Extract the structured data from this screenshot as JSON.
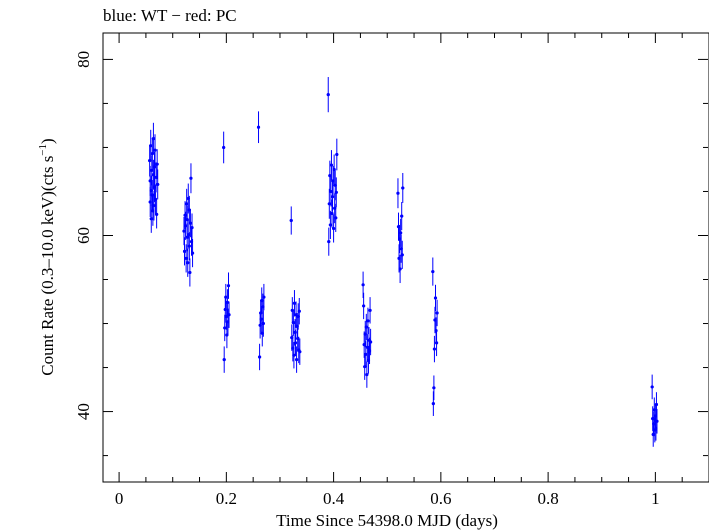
{
  "chart_data": {
    "type": "scatter",
    "title": "blue: WT − red: PC",
    "xlabel": "Time Since 54398.0 MJD (days)",
    "ylabel_main": "Count Rate (0.3–10.0 keV)(cts s",
    "ylabel_sup": "−1",
    "ylabel_end": ")",
    "xlim": [
      -0.03,
      1.1
    ],
    "ylim": [
      32,
      83
    ],
    "x_ticks": [
      0,
      0.2,
      0.4,
      0.6,
      0.8,
      1
    ],
    "x_tick_labels": [
      "0",
      "0.2",
      "0.4",
      "0.6",
      "0.8",
      "1"
    ],
    "y_ticks": [
      40,
      60,
      80
    ],
    "y_tick_labels": [
      "40",
      "60",
      "80"
    ],
    "grid": false,
    "colors": {
      "WT": "#0000ff",
      "PC": "#ff0000",
      "axes": "#000000"
    },
    "series": [
      {
        "mode": "WT",
        "color": "#0000ff",
        "points": [
          [
            0.057,
            68.5,
            1.8
          ],
          [
            0.058,
            66.2,
            1.7
          ],
          [
            0.058,
            63.8,
            1.7
          ],
          [
            0.059,
            70.2,
            1.8
          ],
          [
            0.06,
            65.1,
            1.7
          ],
          [
            0.06,
            61.9,
            1.6
          ],
          [
            0.061,
            67.4,
            1.7
          ],
          [
            0.062,
            64.6,
            1.7
          ],
          [
            0.062,
            69.3,
            1.8
          ],
          [
            0.063,
            62.8,
            1.7
          ],
          [
            0.064,
            66.9,
            1.7
          ],
          [
            0.064,
            71.0,
            1.8
          ],
          [
            0.065,
            63.4,
            1.7
          ],
          [
            0.066,
            67.8,
            1.7
          ],
          [
            0.066,
            65.5,
            1.7
          ],
          [
            0.067,
            69.7,
            1.8
          ],
          [
            0.068,
            64.1,
            1.7
          ],
          [
            0.069,
            66.6,
            1.7
          ],
          [
            0.07,
            62.4,
            1.6
          ],
          [
            0.071,
            68.1,
            1.7
          ],
          [
            0.072,
            65.8,
            1.7
          ],
          [
            0.121,
            60.5,
            1.6
          ],
          [
            0.122,
            58.2,
            1.6
          ],
          [
            0.123,
            62.3,
            1.6
          ],
          [
            0.124,
            61.1,
            1.6
          ],
          [
            0.125,
            57.4,
            1.6
          ],
          [
            0.126,
            63.6,
            1.7
          ],
          [
            0.127,
            59.8,
            1.6
          ],
          [
            0.127,
            61.8,
            1.6
          ],
          [
            0.128,
            56.9,
            1.6
          ],
          [
            0.129,
            64.2,
            1.7
          ],
          [
            0.13,
            60.1,
            1.6
          ],
          [
            0.131,
            58.8,
            1.6
          ],
          [
            0.131,
            62.9,
            1.6
          ],
          [
            0.132,
            55.8,
            1.6
          ],
          [
            0.133,
            61.4,
            1.6
          ],
          [
            0.134,
            66.5,
            1.7
          ],
          [
            0.135,
            59.3,
            1.6
          ],
          [
            0.136,
            60.9,
            1.6
          ],
          [
            0.137,
            58.0,
            1.6
          ],
          [
            0.195,
            70.0,
            1.8
          ],
          [
            0.196,
            45.9,
            1.5
          ],
          [
            0.197,
            49.5,
            1.5
          ],
          [
            0.198,
            51.6,
            1.5
          ],
          [
            0.199,
            53.0,
            1.5
          ],
          [
            0.2,
            50.8,
            1.5
          ],
          [
            0.201,
            48.7,
            1.5
          ],
          [
            0.202,
            52.4,
            1.5
          ],
          [
            0.203,
            50.2,
            1.5
          ],
          [
            0.204,
            54.3,
            1.5
          ],
          [
            0.205,
            51.0,
            1.5
          ],
          [
            0.26,
            72.3,
            1.8
          ],
          [
            0.262,
            46.2,
            1.5
          ],
          [
            0.263,
            49.8,
            1.5
          ],
          [
            0.264,
            51.2,
            1.5
          ],
          [
            0.265,
            50.5,
            1.5
          ],
          [
            0.266,
            52.6,
            1.5
          ],
          [
            0.267,
            48.9,
            1.5
          ],
          [
            0.268,
            51.9,
            1.5
          ],
          [
            0.269,
            50.0,
            1.5
          ],
          [
            0.27,
            53.0,
            1.5
          ],
          [
            0.321,
            61.7,
            1.6
          ],
          [
            0.322,
            48.4,
            1.5
          ],
          [
            0.323,
            51.5,
            1.5
          ],
          [
            0.324,
            47.2,
            1.5
          ],
          [
            0.325,
            50.1,
            1.5
          ],
          [
            0.326,
            46.4,
            1.5
          ],
          [
            0.327,
            52.3,
            1.5
          ],
          [
            0.328,
            49.0,
            1.5
          ],
          [
            0.329,
            47.8,
            1.5
          ],
          [
            0.33,
            51.0,
            1.5
          ],
          [
            0.331,
            45.9,
            1.5
          ],
          [
            0.332,
            49.7,
            1.5
          ],
          [
            0.333,
            48.3,
            1.5
          ],
          [
            0.334,
            50.8,
            1.5
          ],
          [
            0.335,
            47.0,
            1.5
          ],
          [
            0.336,
            51.4,
            1.5
          ],
          [
            0.337,
            46.8,
            1.5
          ],
          [
            0.39,
            76.0,
            2.0
          ],
          [
            0.391,
            59.3,
            1.6
          ],
          [
            0.392,
            63.6,
            1.7
          ],
          [
            0.393,
            66.8,
            1.7
          ],
          [
            0.394,
            61.2,
            1.6
          ],
          [
            0.395,
            65.0,
            1.7
          ],
          [
            0.396,
            68.0,
            1.7
          ],
          [
            0.397,
            62.5,
            1.6
          ],
          [
            0.398,
            64.4,
            1.7
          ],
          [
            0.399,
            66.2,
            1.7
          ],
          [
            0.4,
            60.8,
            1.6
          ],
          [
            0.401,
            67.5,
            1.7
          ],
          [
            0.402,
            63.1,
            1.7
          ],
          [
            0.403,
            65.7,
            1.7
          ],
          [
            0.404,
            62.0,
            1.6
          ],
          [
            0.405,
            64.9,
            1.7
          ],
          [
            0.406,
            69.2,
            1.8
          ],
          [
            0.455,
            54.4,
            1.5
          ],
          [
            0.456,
            52.0,
            1.5
          ],
          [
            0.457,
            47.6,
            1.5
          ],
          [
            0.458,
            45.1,
            1.5
          ],
          [
            0.459,
            48.8,
            1.5
          ],
          [
            0.46,
            46.5,
            1.5
          ],
          [
            0.461,
            49.6,
            1.5
          ],
          [
            0.462,
            44.2,
            1.5
          ],
          [
            0.463,
            47.3,
            1.5
          ],
          [
            0.464,
            50.3,
            1.5
          ],
          [
            0.465,
            45.8,
            1.5
          ],
          [
            0.466,
            48.1,
            1.5
          ],
          [
            0.467,
            46.9,
            1.5
          ],
          [
            0.468,
            51.5,
            1.5
          ],
          [
            0.469,
            47.9,
            1.5
          ],
          [
            0.52,
            64.8,
            1.7
          ],
          [
            0.521,
            61.0,
            1.6
          ],
          [
            0.522,
            57.4,
            1.6
          ],
          [
            0.523,
            59.6,
            1.6
          ],
          [
            0.524,
            56.2,
            1.6
          ],
          [
            0.525,
            60.3,
            1.6
          ],
          [
            0.526,
            58.5,
            1.6
          ],
          [
            0.527,
            62.2,
            1.6
          ],
          [
            0.528,
            57.8,
            1.6
          ],
          [
            0.529,
            65.4,
            1.7
          ],
          [
            0.585,
            55.9,
            1.6
          ],
          [
            0.586,
            40.9,
            1.4
          ],
          [
            0.587,
            42.7,
            1.4
          ],
          [
            0.588,
            47.1,
            1.5
          ],
          [
            0.589,
            50.4,
            1.5
          ],
          [
            0.59,
            52.9,
            1.5
          ],
          [
            0.591,
            49.2,
            1.5
          ],
          [
            0.592,
            47.8,
            1.5
          ],
          [
            0.593,
            51.2,
            1.5
          ],
          [
            0.994,
            42.8,
            1.4
          ],
          [
            0.995,
            39.2,
            1.4
          ],
          [
            0.996,
            37.4,
            1.4
          ],
          [
            0.997,
            38.6,
            1.4
          ],
          [
            0.998,
            40.2,
            1.4
          ],
          [
            0.999,
            37.9,
            1.4
          ],
          [
            1.0,
            39.5,
            1.4
          ],
          [
            1.001,
            38.1,
            1.4
          ],
          [
            1.002,
            40.8,
            1.4
          ],
          [
            1.003,
            38.9,
            1.4
          ]
        ]
      }
    ]
  }
}
